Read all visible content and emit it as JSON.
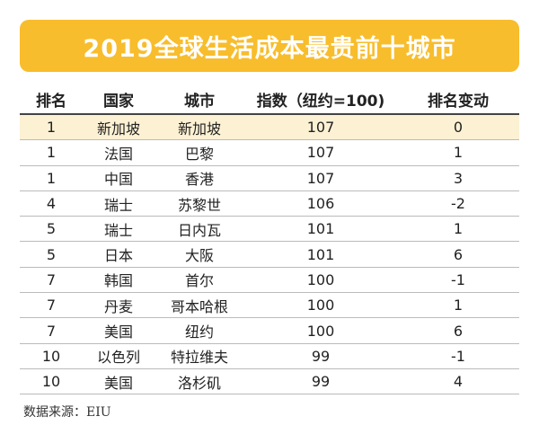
{
  "header": {
    "title": "2019全球生活成本最贵前十城市"
  },
  "table": {
    "columns": [
      "排名",
      "国家",
      "城市",
      "指数（纽约=100)",
      "排名变动"
    ],
    "rows": [
      [
        1,
        "新加坡",
        "新加坡",
        107,
        0
      ],
      [
        1,
        "法国",
        "巴黎",
        107,
        1
      ],
      [
        1,
        "中国",
        "香港",
        107,
        3
      ],
      [
        4,
        "瑞士",
        "苏黎世",
        106,
        -2
      ],
      [
        5,
        "瑞士",
        "日内瓦",
        101,
        1
      ],
      [
        5,
        "日本",
        "大阪",
        101,
        6
      ],
      [
        7,
        "韩国",
        "首尔",
        100,
        -1
      ],
      [
        7,
        "丹麦",
        "哥本哈根",
        100,
        1
      ],
      [
        7,
        "美国",
        "纽约",
        100,
        6
      ],
      [
        10,
        "以色列",
        "特拉维夫",
        99,
        -1
      ],
      [
        10,
        "美国",
        "洛杉矶",
        99,
        4
      ]
    ]
  },
  "footer": {
    "source": "数据来源：EIU"
  }
}
